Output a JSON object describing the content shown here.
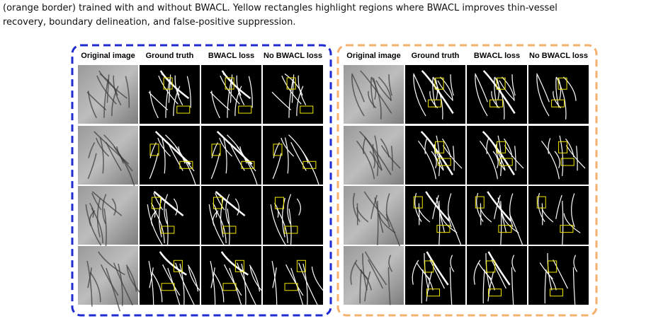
{
  "caption": {
    "lines": [
      "(orange border) trained with and without BWACL. Yellow rectangles highlight regions where BWACL improves thin-vessel",
      "recovery, boundary delineation, and false-positive suppression."
    ]
  },
  "panels": [
    {
      "headers": [
        "Original image",
        "Ground truth",
        "BWACL loss",
        "No BWACL loss"
      ]
    },
    {
      "headers": [
        "Original image",
        "Ground truth",
        "BWACL loss",
        "No BWACL loss"
      ]
    }
  ]
}
